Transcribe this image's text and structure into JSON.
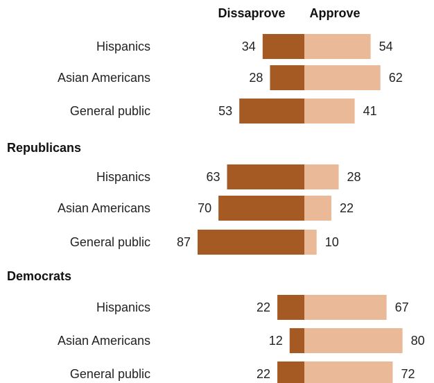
{
  "chart_data": {
    "type": "bar",
    "series": [
      {
        "name": "Dissaprove",
        "color": "#a55a24"
      },
      {
        "name": "Approve",
        "color": "#e9b998"
      }
    ],
    "groups": [
      {
        "label": "",
        "rows": [
          {
            "category": "Hispanics",
            "disapprove": 34,
            "approve": 54
          },
          {
            "category": "Asian Americans",
            "disapprove": 28,
            "approve": 62
          },
          {
            "category": "General public",
            "disapprove": 53,
            "approve": 41
          }
        ]
      },
      {
        "label": "Republicans",
        "rows": [
          {
            "category": "Hispanics",
            "disapprove": 63,
            "approve": 28
          },
          {
            "category": "Asian Americans",
            "disapprove": 70,
            "approve": 22
          },
          {
            "category": "General public",
            "disapprove": 87,
            "approve": 10
          }
        ]
      },
      {
        "label": "Democrats",
        "rows": [
          {
            "category": "Hispanics",
            "disapprove": 22,
            "approve": 67
          },
          {
            "category": "Asian Americans",
            "disapprove": 12,
            "approve": 80
          },
          {
            "category": "General public",
            "disapprove": 22,
            "approve": 72
          }
        ]
      }
    ]
  }
}
